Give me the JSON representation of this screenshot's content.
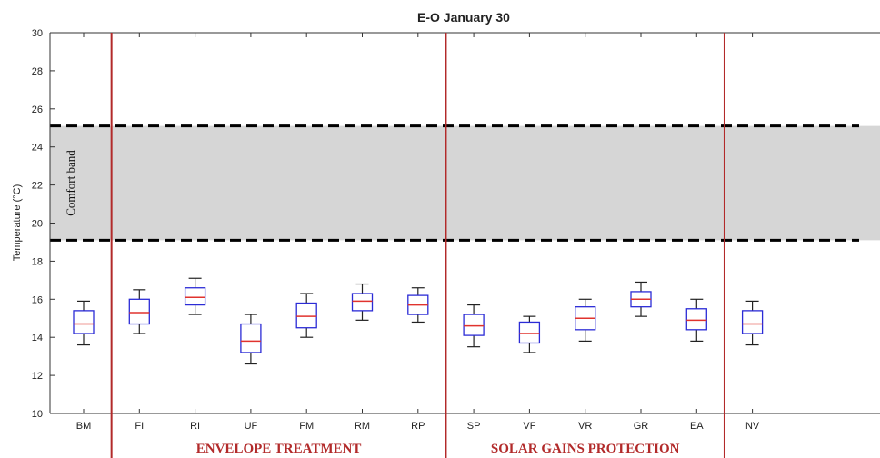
{
  "chart_data": {
    "type": "box",
    "title": "E-O January 30",
    "ylabel": "Temperature (°C)",
    "xlabel": "",
    "ylim": [
      10,
      30
    ],
    "yticks": [
      10,
      12,
      14,
      16,
      18,
      20,
      22,
      24,
      26,
      28,
      30
    ],
    "categories": [
      "BM",
      "FI",
      "RI",
      "UF",
      "FM",
      "RM",
      "RP",
      "SP",
      "VF",
      "VR",
      "GR",
      "EA",
      "NV"
    ],
    "boxes": [
      {
        "label": "BM",
        "min": 13.6,
        "q1": 14.2,
        "median": 14.7,
        "q3": 15.4,
        "max": 15.9
      },
      {
        "label": "FI",
        "min": 14.2,
        "q1": 14.7,
        "median": 15.3,
        "q3": 16.0,
        "max": 16.5
      },
      {
        "label": "RI",
        "min": 15.2,
        "q1": 15.7,
        "median": 16.1,
        "q3": 16.6,
        "max": 17.1
      },
      {
        "label": "UF",
        "min": 12.6,
        "q1": 13.2,
        "median": 13.8,
        "q3": 14.7,
        "max": 15.2
      },
      {
        "label": "FM",
        "min": 14.0,
        "q1": 14.5,
        "median": 15.1,
        "q3": 15.8,
        "max": 16.3
      },
      {
        "label": "RM",
        "min": 14.9,
        "q1": 15.4,
        "median": 15.9,
        "q3": 16.3,
        "max": 16.8
      },
      {
        "label": "RP",
        "min": 14.8,
        "q1": 15.2,
        "median": 15.7,
        "q3": 16.2,
        "max": 16.6
      },
      {
        "label": "SP",
        "min": 13.5,
        "q1": 14.1,
        "median": 14.6,
        "q3": 15.2,
        "max": 15.7
      },
      {
        "label": "VF",
        "min": 13.2,
        "q1": 13.7,
        "median": 14.2,
        "q3": 14.8,
        "max": 15.1
      },
      {
        "label": "VR",
        "min": 13.8,
        "q1": 14.4,
        "median": 15.0,
        "q3": 15.6,
        "max": 16.0
      },
      {
        "label": "GR",
        "min": 15.1,
        "q1": 15.6,
        "median": 16.0,
        "q3": 16.4,
        "max": 16.9
      },
      {
        "label": "EA",
        "min": 13.8,
        "q1": 14.4,
        "median": 14.9,
        "q3": 15.5,
        "max": 16.0
      },
      {
        "label": "NV",
        "min": 13.6,
        "q1": 14.2,
        "median": 14.7,
        "q3": 15.4,
        "max": 15.9
      }
    ],
    "comfort_band": {
      "label": "Comfort band",
      "low": 19.1,
      "high": 25.1
    },
    "dividers_after": [
      "BM",
      "RP",
      "EA"
    ],
    "group_labels": [
      {
        "text": "ENVELOPE TREATMENT",
        "from": "FI",
        "to": "RP"
      },
      {
        "text": "SOLAR GAINS PROTECTION",
        "from": "SP",
        "to": "EA"
      }
    ],
    "grid": false,
    "colors": {
      "box": "#2b2bd6",
      "median": "#e0332e",
      "whisker": "#222222",
      "band": "#d6d6d6",
      "band_edge": "#000000",
      "divider": "#b22a2a",
      "group_label": "#b22a2a"
    }
  }
}
